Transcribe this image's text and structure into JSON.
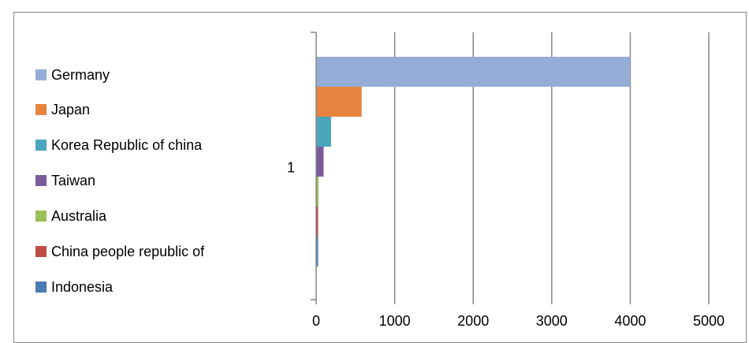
{
  "chart_data": {
    "type": "bar",
    "orientation": "horizontal",
    "categories": [
      "1"
    ],
    "series": [
      {
        "name": "Germany",
        "values": [
          4000
        ],
        "color": "#95ADD6"
      },
      {
        "name": "Japan",
        "values": [
          580
        ],
        "color": "#E6843F"
      },
      {
        "name": "Korea Republic of china",
        "values": [
          190
        ],
        "color": "#4AA5BD"
      },
      {
        "name": "Taiwan",
        "values": [
          95
        ],
        "color": "#7A5C9E"
      },
      {
        "name": "Australia",
        "values": [
          30
        ],
        "color": "#9DBF59"
      },
      {
        "name": "China people republic of",
        "values": [
          25
        ],
        "color": "#BF4B48"
      },
      {
        "name": "Indonesia",
        "values": [
          25
        ],
        "color": "#4A7AB5"
      }
    ],
    "xlim": [
      0,
      5000
    ],
    "xticks": [
      "0",
      "1000",
      "2000",
      "3000",
      "4000",
      "5000"
    ],
    "grid": true,
    "legend_position": "left",
    "title": "",
    "xlabel": "",
    "ylabel": ""
  }
}
